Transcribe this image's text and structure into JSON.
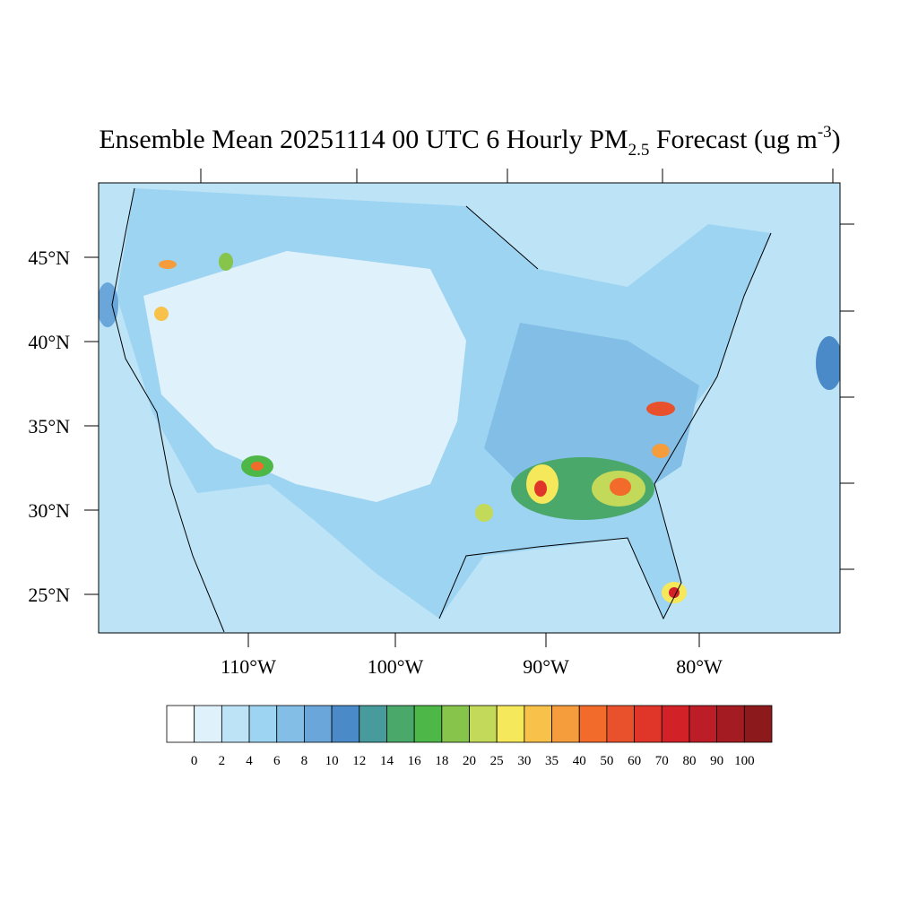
{
  "title": {
    "main": "Ensemble Mean 20251114 00 UTC 6 Hourly PM",
    "subscript": "2.5",
    "middle": " Forecast (ug m",
    "superscript": "-3",
    "end": ")"
  },
  "map": {
    "lat_labels": [
      "45°N",
      "40°N",
      "35°N",
      "30°N",
      "25°N"
    ],
    "lon_labels": [
      "110°W",
      "100°W",
      "90°W",
      "80°W"
    ]
  },
  "colorbar": {
    "colors": [
      "#ffffff",
      "#dff1fb",
      "#bde3f6",
      "#9dd4f2",
      "#83bee6",
      "#6aa6da",
      "#4a8ac8",
      "#479b9c",
      "#4aa86a",
      "#4db748",
      "#86c44c",
      "#c3d95a",
      "#f5e85a",
      "#f7c14a",
      "#f59c3c",
      "#f26b2a",
      "#e8512c",
      "#e0362a",
      "#d32128",
      "#bd1d26",
      "#a41c22",
      "#8c1a1c"
    ],
    "levels": [
      0,
      2,
      4,
      6,
      8,
      10,
      12,
      14,
      16,
      18,
      20,
      25,
      30,
      35,
      40,
      50,
      60,
      70,
      80,
      90,
      100
    ]
  }
}
